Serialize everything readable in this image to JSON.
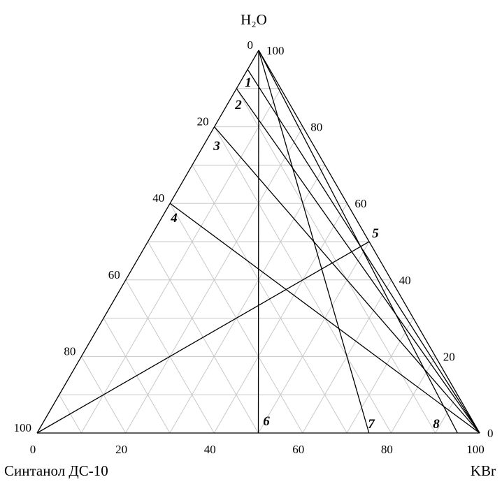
{
  "diagram": {
    "type": "ternary",
    "vertices": {
      "top": "H₂O",
      "left": "Синтанол ДС-10",
      "right": "KBr"
    },
    "left_edge_ticks": [
      "0",
      "20",
      "40",
      "60",
      "80",
      "100"
    ],
    "right_edge_ticks": [
      "100",
      "80",
      "60",
      "40",
      "20",
      "0"
    ],
    "bottom_edge_ticks": [
      "0",
      "20",
      "40",
      "60",
      "80",
      "100"
    ],
    "grid_color": "#c8c8c8",
    "line_color": "#000000",
    "section_lines": [
      {
        "label": "1",
        "from": "KBr",
        "to_left_edge": 5
      },
      {
        "label": "2",
        "from": "KBr",
        "to_left_edge": 10
      },
      {
        "label": "3",
        "from": "KBr",
        "to_left_edge": 20
      },
      {
        "label": "4",
        "from": "KBr",
        "to_left_edge": 40
      },
      {
        "label": "5",
        "from": "Синтанол ДС-10",
        "to_right_edge": 50
      },
      {
        "label": "6",
        "from": "H₂O",
        "to_bottom_edge": 50
      },
      {
        "label": "7",
        "from": "H₂O",
        "to_bottom_edge": 75
      },
      {
        "label": "8",
        "from": "H₂O",
        "to_bottom_edge": 95
      }
    ]
  }
}
